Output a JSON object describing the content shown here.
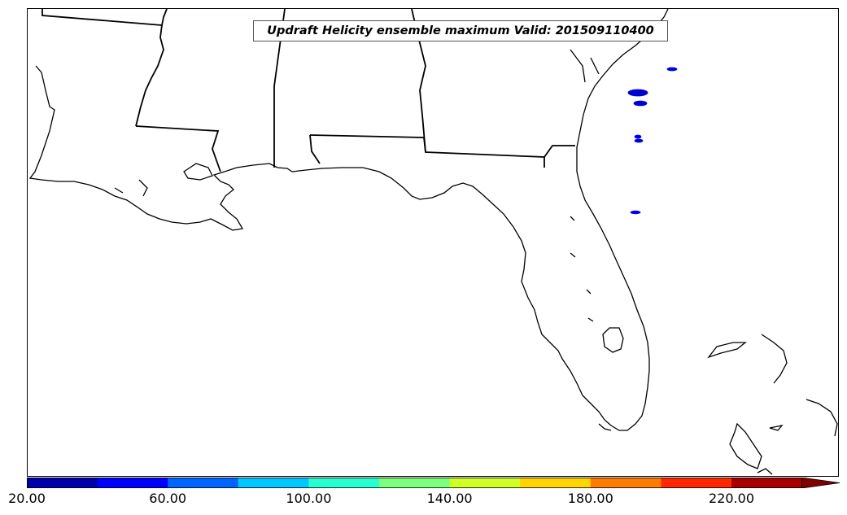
{
  "title": "Updraft Helicity ensemble maximum Valid: 201509110400",
  "colorbar": {
    "ticks": [
      "20.00",
      "60.00",
      "100.00",
      "140.00",
      "180.00",
      "220.00"
    ],
    "colors": [
      "#0000a8",
      "#0000ff",
      "#0064ff",
      "#00c8ff",
      "#28ffd0",
      "#7cff7c",
      "#d0ff28",
      "#ffd400",
      "#ff7c00",
      "#ff2800",
      "#a80000"
    ],
    "overflow_color": "#800000"
  },
  "map_style": {
    "coast_color": "#000000",
    "border_color": "#000000",
    "helicity_color": "#0000cc"
  }
}
